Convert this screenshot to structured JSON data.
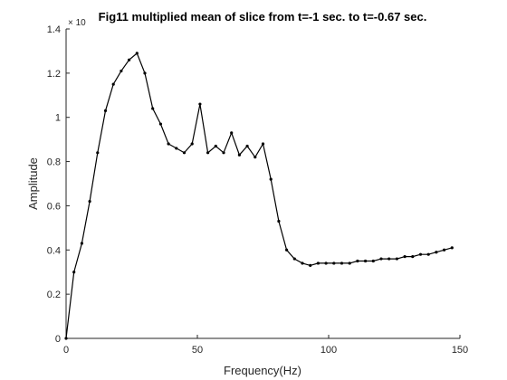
{
  "chart_data": {
    "type": "line",
    "title": "Fig11 multiplied mean of slice from t=-1 sec. to t=-0.67 sec.",
    "xlabel": "Frequency(Hz)",
    "ylabel": "Amplitude",
    "y_exponent_label": "× 10",
    "xlim": [
      0,
      150
    ],
    "ylim": [
      0,
      1.4
    ],
    "xticks": [
      0,
      50,
      100,
      150
    ],
    "xtick_labels": [
      "0",
      "50",
      "100",
      "150"
    ],
    "yticks": [
      0,
      0.2,
      0.4,
      0.6,
      0.8,
      1.0,
      1.2,
      1.4
    ],
    "ytick_labels": [
      "0",
      "0.2",
      "0.4",
      "0.6",
      "0.8",
      "1",
      "1.2",
      "1.4"
    ],
    "grid": false,
    "line_color": "#000000",
    "series": [
      {
        "x": [
          0,
          3,
          6,
          9,
          12,
          15,
          18,
          21,
          24,
          27,
          30,
          33,
          36,
          39,
          42,
          45,
          48,
          51,
          54,
          57,
          60,
          63,
          66,
          69,
          72,
          75,
          78,
          81,
          84,
          87,
          90,
          93,
          96,
          99,
          102,
          105,
          108,
          111,
          114,
          117,
          120,
          123,
          126,
          129,
          132,
          135,
          138,
          141,
          144,
          147
        ],
        "values": [
          0.0,
          0.3,
          0.43,
          0.62,
          0.84,
          1.03,
          1.15,
          1.21,
          1.26,
          1.29,
          1.2,
          1.04,
          0.97,
          0.88,
          0.86,
          0.84,
          0.88,
          1.06,
          0.84,
          0.87,
          0.84,
          0.93,
          0.83,
          0.87,
          0.82,
          0.88,
          0.72,
          0.53,
          0.4,
          0.36,
          0.34,
          0.33,
          0.34,
          0.34,
          0.34,
          0.34,
          0.34,
          0.35,
          0.35,
          0.35,
          0.36,
          0.36,
          0.36,
          0.37,
          0.37,
          0.38,
          0.38,
          0.39,
          0.4,
          0.41
        ]
      }
    ]
  }
}
